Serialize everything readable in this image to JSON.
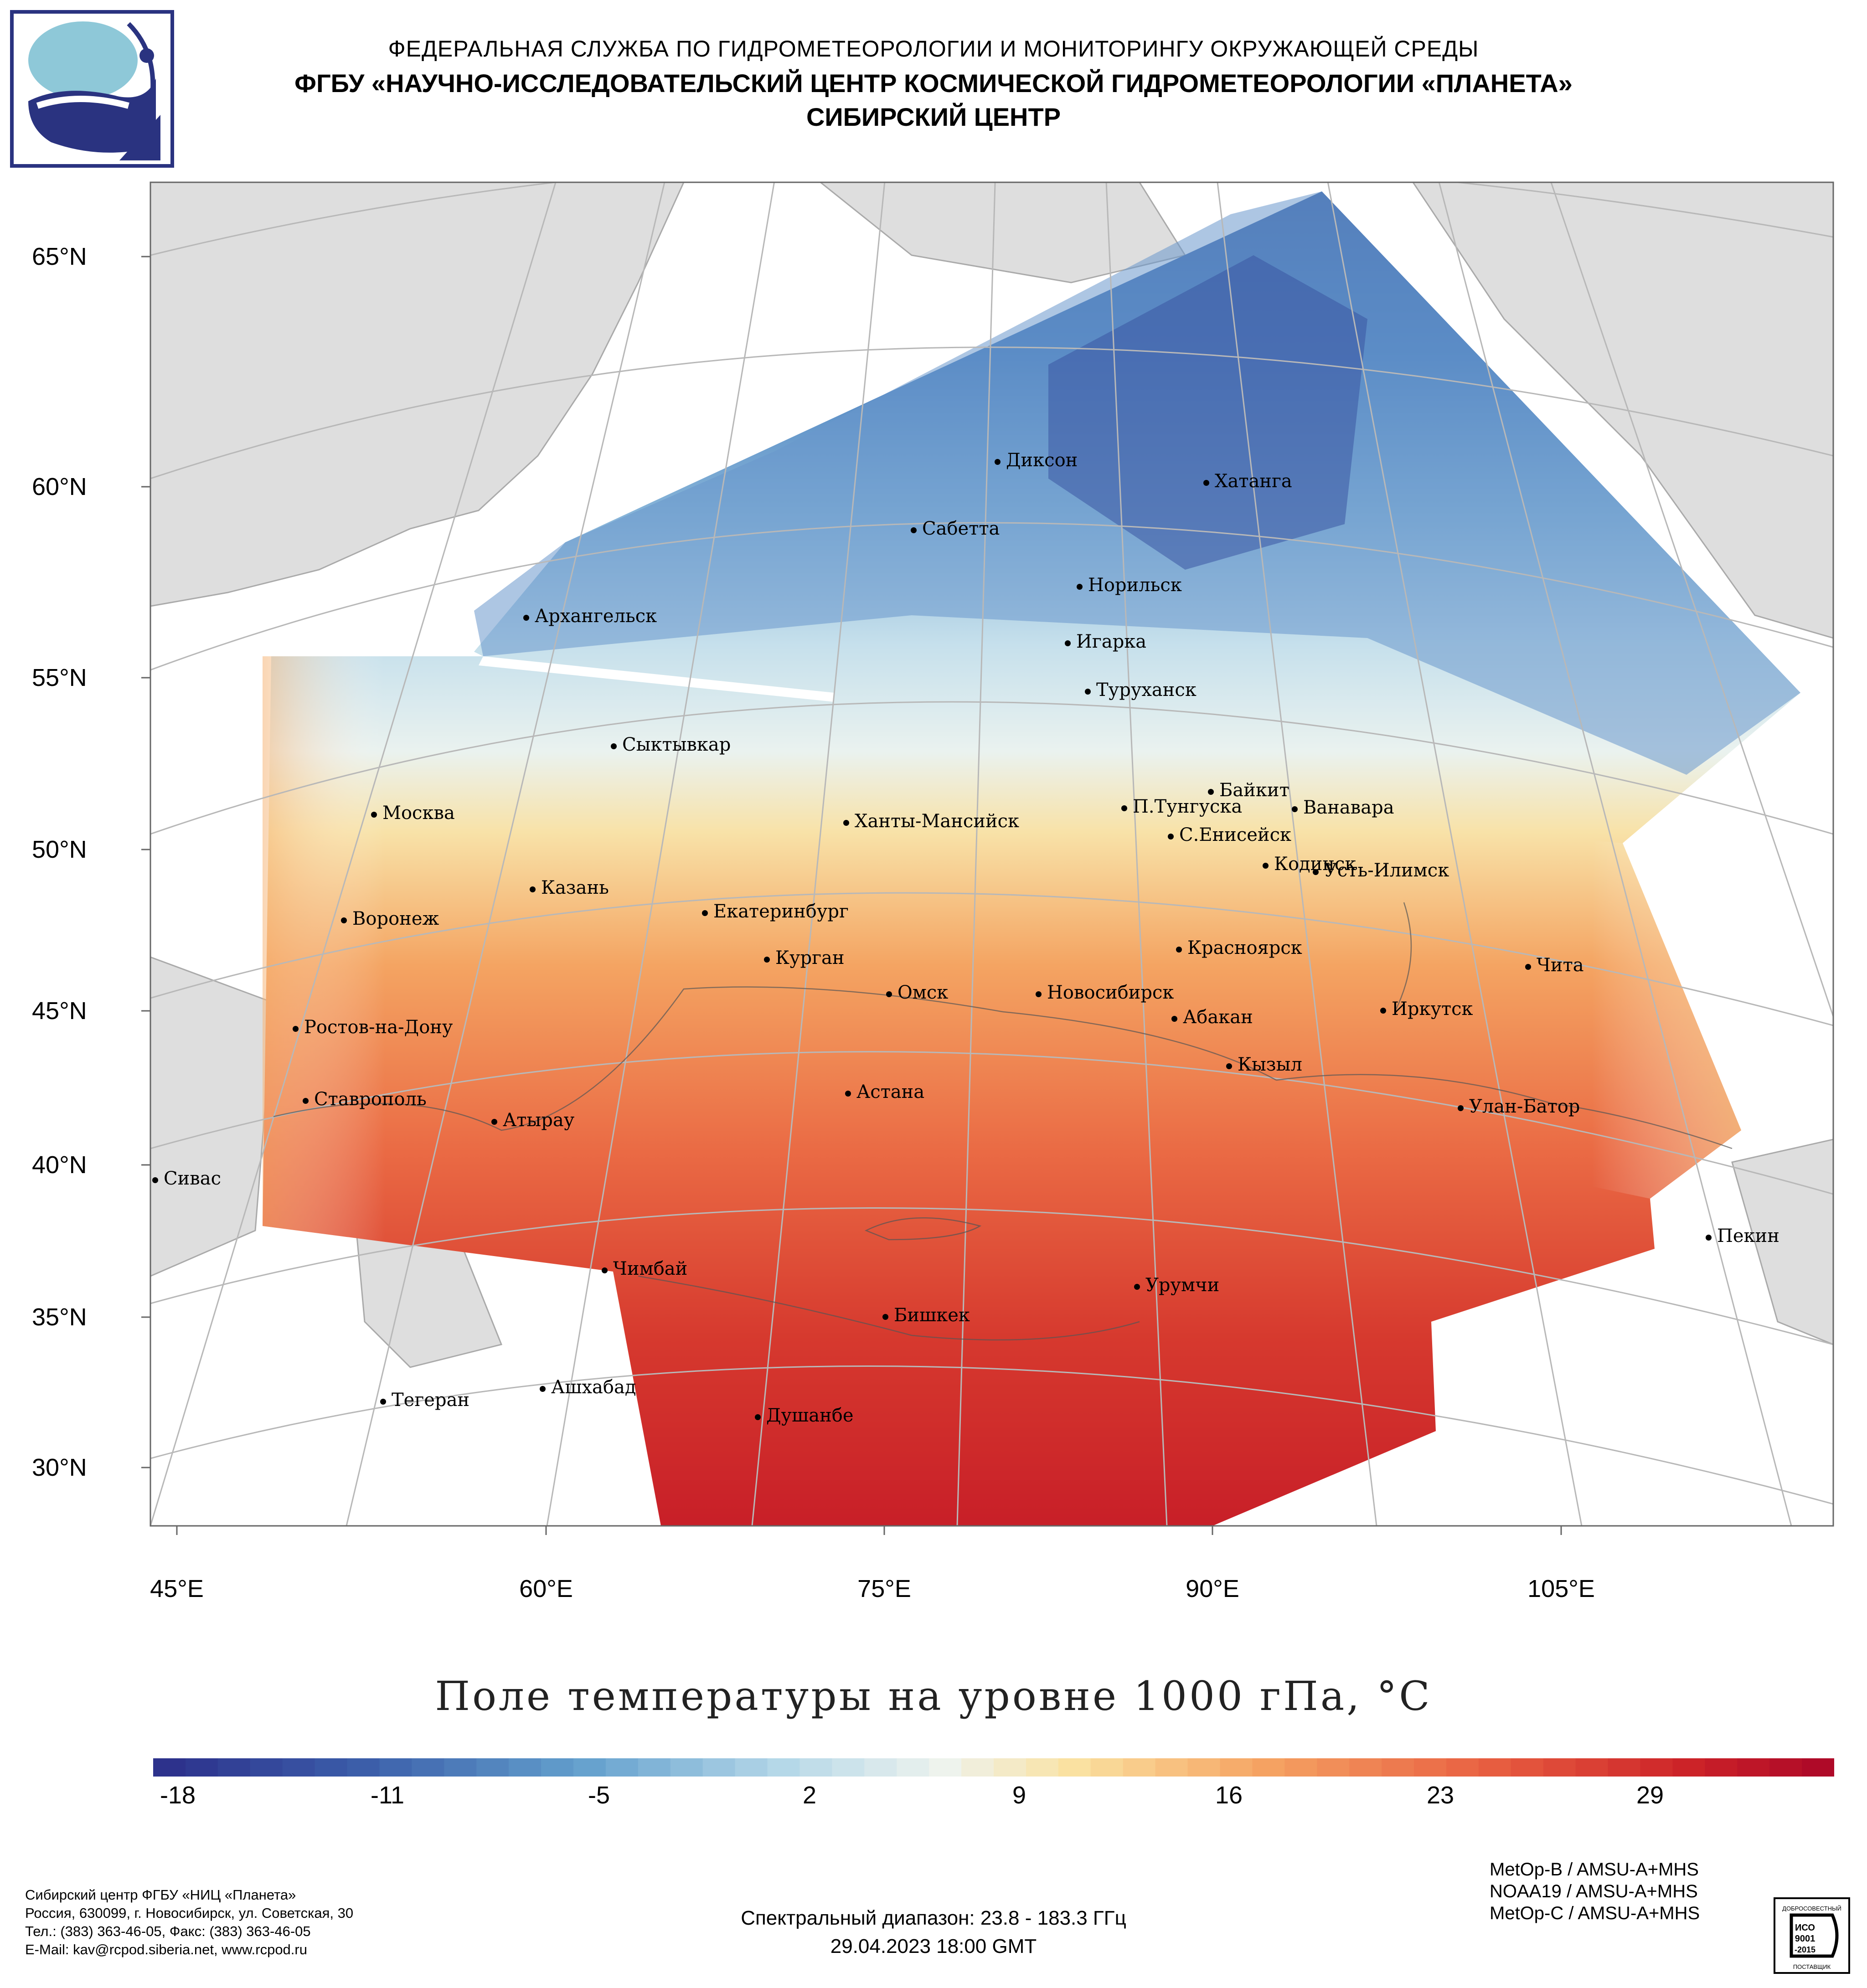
{
  "header": {
    "line1": "ФЕДЕРАЛЬНАЯ СЛУЖБА ПО ГИДРОМЕТЕОРОЛОГИИ И МОНИТОРИНГУ ОКРУЖАЮЩЕЙ СРЕДЫ",
    "line2": "ФГБУ «НАУЧНО-ИССЛЕДОВАТЕЛЬСКИЙ ЦЕНТР КОСМИЧЕСКОЙ ГИДРОМЕТЕОРОЛОГИИ «ПЛАНЕТА»",
    "line3": "СИБИРСКИЙ ЦЕНТР",
    "logo_icon": "planeta-logo-icon"
  },
  "map": {
    "latitude_labels": [
      "65°N",
      "60°N",
      "55°N",
      "50°N",
      "45°N",
      "40°N",
      "35°N",
      "30°N"
    ],
    "longitude_labels": [
      "45°E",
      "60°E",
      "75°E",
      "90°E",
      "105°E"
    ],
    "cities": [
      {
        "name": "Диксон"
      },
      {
        "name": "Хатанга"
      },
      {
        "name": "Сабетта"
      },
      {
        "name": "Норильск"
      },
      {
        "name": "Архангельск"
      },
      {
        "name": "Игарка"
      },
      {
        "name": "Туруханск"
      },
      {
        "name": "Сыктывкар"
      },
      {
        "name": "Байкит"
      },
      {
        "name": "П.Тунгуска"
      },
      {
        "name": "Ванавара"
      },
      {
        "name": "Москва"
      },
      {
        "name": "Ханты-Мансийск"
      },
      {
        "name": "С.Енисейск"
      },
      {
        "name": "Кодинск"
      },
      {
        "name": "Усть-Илимск"
      },
      {
        "name": "Казань"
      },
      {
        "name": "Екатеринбург"
      },
      {
        "name": "Воронеж"
      },
      {
        "name": "Красноярск"
      },
      {
        "name": "Курган"
      },
      {
        "name": "Чита"
      },
      {
        "name": "Омск"
      },
      {
        "name": "Новосибирск"
      },
      {
        "name": "Иркутск"
      },
      {
        "name": "Ростов-на-Дону"
      },
      {
        "name": "Абакан"
      },
      {
        "name": "Кызыл"
      },
      {
        "name": "Ставрополь"
      },
      {
        "name": "Астана"
      },
      {
        "name": "Улан-Батор"
      },
      {
        "name": "Атырау"
      },
      {
        "name": "Сивас"
      },
      {
        "name": "Пекин"
      },
      {
        "name": "Чимбай"
      },
      {
        "name": "Урумчи"
      },
      {
        "name": "Бишкек"
      },
      {
        "name": "Ашхабад"
      },
      {
        "name": "Тегеран"
      },
      {
        "name": "Душанбе"
      }
    ]
  },
  "title": "Поле температуры на уровне 1000 гПа, °С",
  "colorbar": {
    "ticks": [
      "-18",
      "-11",
      "-5",
      "2",
      "9",
      "16",
      "23",
      "29"
    ]
  },
  "footer": {
    "org_lines": [
      "Сибирский центр ФГБУ «НИЦ «Планета»",
      "Россия, 630099, г. Новосибирск, ул. Советская, 30",
      "Тел.: (383) 363-46-05, Факс: (383) 363-46-05",
      "E-Mail: kav@rcpod.siberia.net, www.rcpod.ru"
    ],
    "spectral": "Спектральный диапазон: 23.8 - 183.3 ГГц",
    "datetime": "29.04.2023 18:00 GMT",
    "satellites": [
      "MetOp-B / AMSU-A+MHS",
      "NOAA19 / AMSU-A+MHS",
      "MetOp-C / AMSU-A+MHS"
    ],
    "iso_badge": {
      "top_text": "ДОБРОСОВЕСТНЫЙ",
      "line1": "ИСО",
      "line2": "9001",
      "line3": "-2015",
      "bottom_text": "ПОСТАВЩИК"
    }
  },
  "colors": {
    "cold": "#3b5ea8",
    "neutral": "#eef4f4",
    "warm": "#f4a25c",
    "hot": "#c8202a",
    "land": "#e0e0e0"
  }
}
